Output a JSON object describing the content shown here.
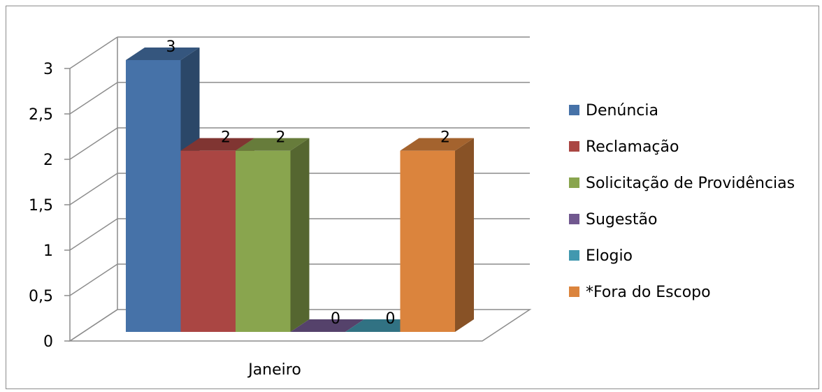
{
  "chart_data": {
    "type": "bar",
    "categories": [
      "Janeiro"
    ],
    "series": [
      {
        "name": "Denúncia",
        "values": [
          3
        ],
        "color": "#4672a8"
      },
      {
        "name": "Reclamação",
        "values": [
          2
        ],
        "color": "#aa4643"
      },
      {
        "name": "Solicitação de Providências",
        "values": [
          2
        ],
        "color": "#89a54e"
      },
      {
        "name": "Sugestão",
        "values": [
          0
        ],
        "color": "#71588f"
      },
      {
        "name": "Elogio",
        "values": [
          0
        ],
        "color": "#4198af"
      },
      {
        "name": "*Fora do Escopo",
        "values": [
          2
        ],
        "color": "#db843d"
      }
    ],
    "y_ticks": [
      "0",
      "0,5",
      "1",
      "1,5",
      "2",
      "2,5",
      "3"
    ],
    "ylim": [
      0,
      3
    ],
    "data_labels": [
      "3",
      "2",
      "2",
      "0",
      "0",
      "2"
    ],
    "grid": true,
    "legend_position": "right"
  }
}
